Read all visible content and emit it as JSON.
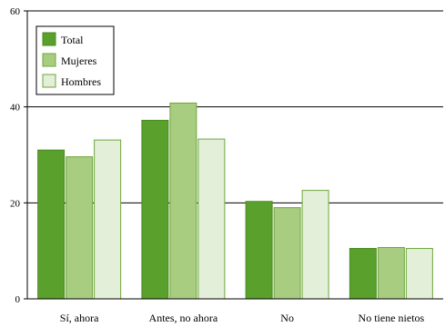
{
  "chart_data": {
    "type": "bar",
    "categories": [
      "Sí, ahora",
      "Antes, no ahora",
      "No",
      "No tiene nietos"
    ],
    "series": [
      {
        "name": "Total",
        "color": "#5aa02c",
        "stroke": "#4a8a20",
        "values": [
          31.0,
          37.2,
          20.3,
          10.5
        ]
      },
      {
        "name": "Mujeres",
        "color": "#a8cc80",
        "stroke": "#6fa63d",
        "values": [
          29.6,
          40.8,
          19.0,
          10.7
        ]
      },
      {
        "name": "Hombres",
        "color": "#e3efd8",
        "stroke": "#6fa63d",
        "values": [
          33.1,
          33.3,
          22.6,
          10.5
        ]
      }
    ],
    "ylim": [
      0,
      60
    ],
    "yticks": [
      0,
      20,
      40,
      60
    ],
    "grid": true,
    "legend_position": "top-left",
    "title": "",
    "xlabel": "",
    "ylabel": ""
  }
}
